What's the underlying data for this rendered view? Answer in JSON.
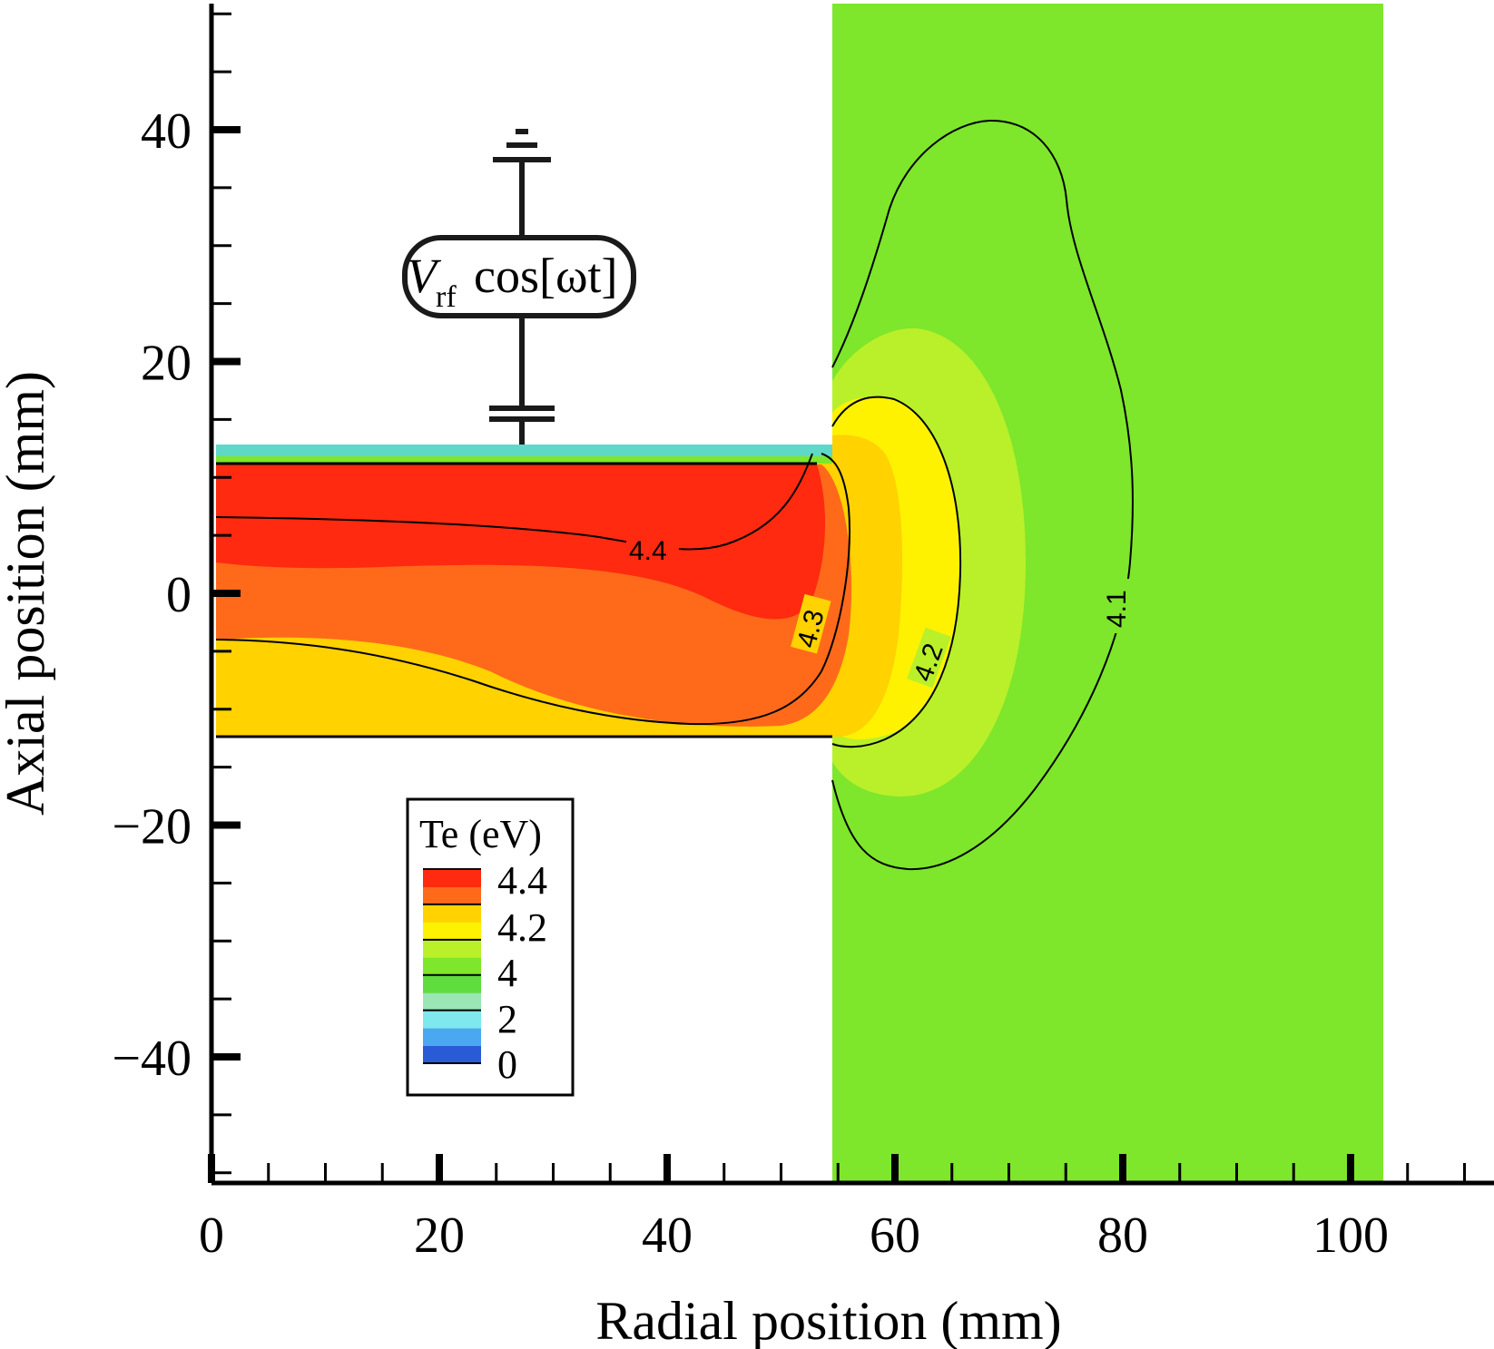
{
  "chart_data": {
    "type": "heatmap",
    "title": "",
    "xlabel": "Radial position (mm)",
    "ylabel": "Axial position (mm)",
    "xlim": [
      0,
      110
    ],
    "ylim": [
      -50,
      50
    ],
    "x_ticks": [
      0,
      20,
      40,
      60,
      80,
      100
    ],
    "y_ticks": [
      -40,
      -20,
      0,
      20,
      40
    ],
    "x_tick_labels": [
      "0",
      "20",
      "40",
      "60",
      "80",
      "100"
    ],
    "y_tick_labels": [
      "−40",
      "−20",
      "0",
      "20",
      "40"
    ],
    "grid": false,
    "colorbar": {
      "title": "Te (eV)",
      "placement": "lower-left inside plot",
      "labels": [
        "4.4",
        "4.2",
        "4",
        "2",
        "0"
      ],
      "bands": [
        {
          "color": "#2a5bd7"
        },
        {
          "color": "#4aa8f0"
        },
        {
          "color": "#7ee8ee"
        },
        {
          "color": "#9ae6b4"
        },
        {
          "color": "#5fdc3e"
        },
        {
          "color": "#7ee62b"
        },
        {
          "color": "#b9f02a"
        },
        {
          "color": "#fff200"
        },
        {
          "color": "#ffd200"
        },
        {
          "color": "#ff6a1a"
        },
        {
          "color": "#ff2a0f"
        }
      ]
    },
    "contours": [
      {
        "level": "4.4",
        "label": "4.4"
      },
      {
        "level": "4.3",
        "label": "4.3"
      },
      {
        "level": "4.2",
        "label": "4.2"
      },
      {
        "level": "4.1",
        "label": "4.1"
      }
    ],
    "regions": {
      "discharge_tube": {
        "r": [
          0,
          53
        ],
        "z": [
          -12.5,
          11.5
        ]
      },
      "expansion_chamber": {
        "r": [
          53,
          101
        ],
        "z": [
          -50,
          50
        ]
      }
    },
    "circuit": {
      "source_label_main": "V",
      "source_label_sub": "rf",
      "source_label_tail": "cos[ωt]"
    },
    "colors": {
      "background_field": "#7ee62b",
      "te_44": "#ff2a0f",
      "te_43": "#ff6a1a",
      "te_42": "#ffd200",
      "te_41": "#fff200",
      "te_40": "#b9f02a",
      "tube_wall": "#5fd8c8"
    }
  }
}
